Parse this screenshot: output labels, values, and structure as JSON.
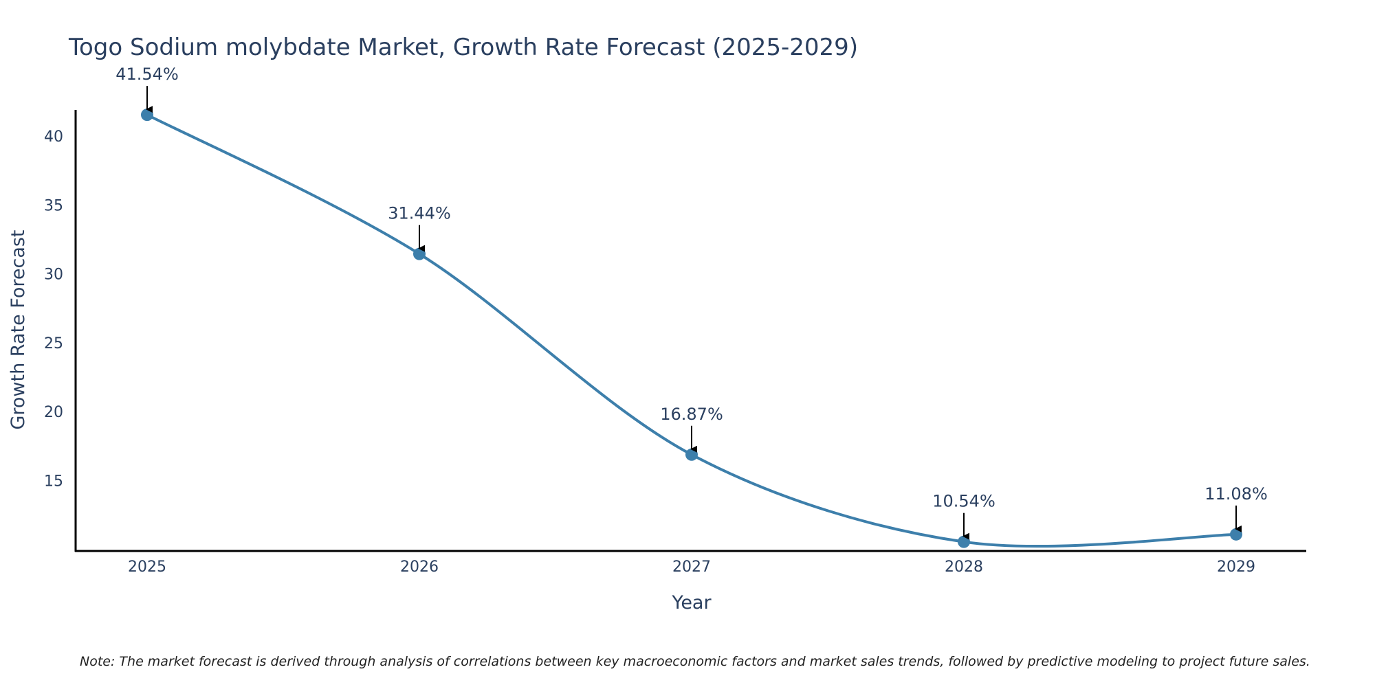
{
  "chart_data": {
    "type": "line",
    "title": "Togo Sodium molybdate Market, Growth Rate Forecast (2025-2029)",
    "xlabel": "Year",
    "ylabel": "Growth Rate Forecast",
    "categories": [
      "2025",
      "2026",
      "2027",
      "2028",
      "2029"
    ],
    "values": [
      41.54,
      31.44,
      16.87,
      10.54,
      11.08
    ],
    "data_labels": [
      "41.54%",
      "31.44%",
      "16.87%",
      "10.54%",
      "11.08%"
    ],
    "yticks": [
      15,
      20,
      25,
      30,
      35,
      40
    ],
    "ytick_labels": [
      "15",
      "20",
      "25",
      "30",
      "35",
      "40"
    ],
    "ylim": [
      10.0,
      42.0
    ],
    "line_color": "#3d7fab",
    "marker_color": "#3d7fab",
    "grid": false,
    "note": "Note: The market forecast is derived through analysis of correlations between key macroeconomic factors and market sales trends, followed by predictive modeling to project future sales."
  }
}
